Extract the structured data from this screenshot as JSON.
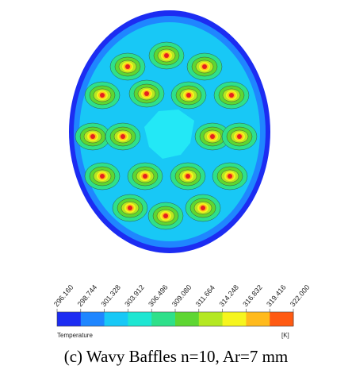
{
  "colorbar": {
    "ticks": [
      "296.160",
      "298.744",
      "301.328",
      "303.912",
      "306.496",
      "309.080",
      "311.664",
      "314.248",
      "316.832",
      "319.416",
      "322.000"
    ],
    "colors": [
      "#1c2cf2",
      "#1f86ff",
      "#18c8f6",
      "#1ee6d2",
      "#2ee08a",
      "#5ed632",
      "#b4e822",
      "#f6f51e",
      "#ffba1c",
      "#ff5a12"
    ],
    "label": "Temperature",
    "unit": "[K]"
  },
  "caption": "(c) Wavy Baffles n=10, Ar=7 mm"
}
